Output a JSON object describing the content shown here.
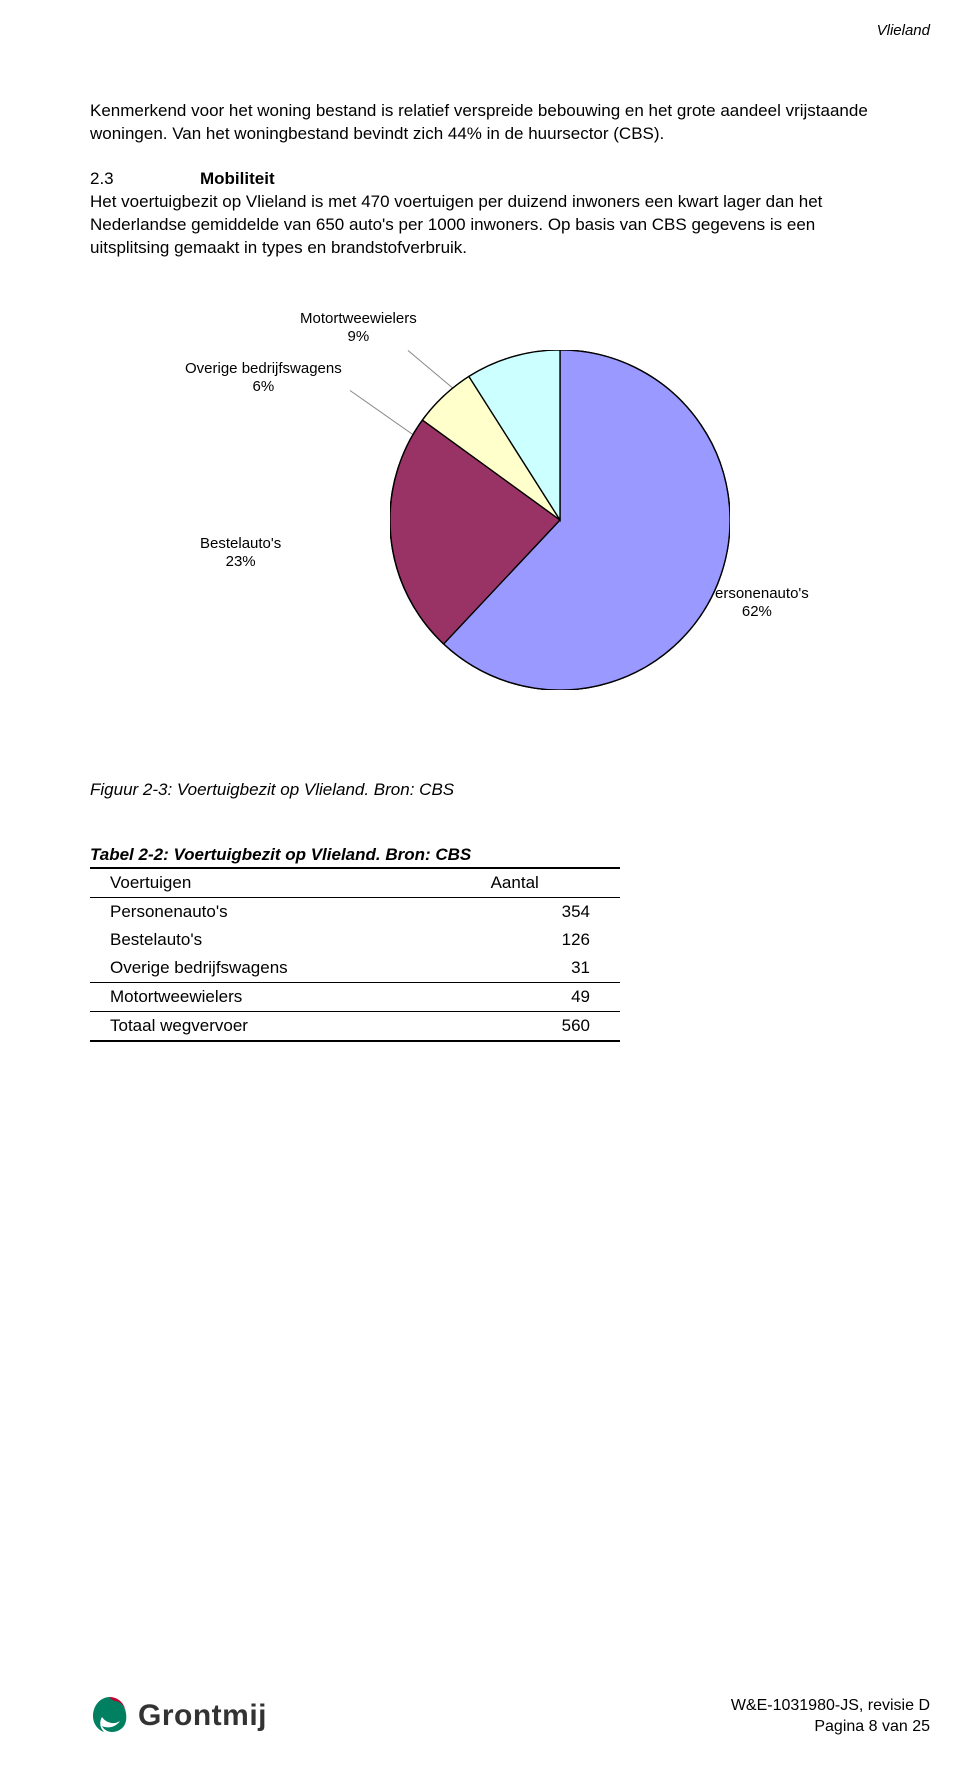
{
  "header": {
    "doc_title": "Vlieland"
  },
  "body": {
    "para1": "Kenmerkend voor het woning bestand is relatief verspreide bebouwing en het grote aandeel vrijstaande woningen. Van het woningbestand bevindt zich 44% in de huursector (CBS).",
    "section_num": "2.3",
    "section_title": "Mobiliteit",
    "para2": "Het voertuigbezit op Vlieland is met 470 voertuigen per duizend inwoners een kwart lager dan het Nederlandse gemiddelde van 650 auto's per 1000 inwoners. Op basis van CBS gegevens is een uitsplitsing gemaakt in types en brandstofverbruik."
  },
  "pie": {
    "type": "pie",
    "colors": {
      "personenauto": "#9999ff",
      "bestelauto": "#993366",
      "overige": "#ffffcc",
      "motor": "#ccffff",
      "stroke": "#000000"
    },
    "slices": [
      {
        "label_line1": "Personenauto's",
        "label_line2": "62%",
        "value": 62
      },
      {
        "label_line1": "Bestelauto's",
        "label_line2": "23%",
        "value": 23
      },
      {
        "label_line1": "Overige bedrijfswagens",
        "label_line2": "6%",
        "value": 6
      },
      {
        "label_line1": "Motortweewielers",
        "label_line2": "9%",
        "value": 9
      }
    ],
    "label_fontsize": 15
  },
  "figure_caption": "Figuur 2-3: Voertuigbezit op Vlieland. Bron: CBS",
  "table": {
    "caption": "Tabel 2-2: Voertuigbezit op Vlieland. Bron: CBS",
    "col1": "Voertuigen",
    "col2": "Aantal",
    "rows": [
      {
        "name": "Personenauto's",
        "value": "354"
      },
      {
        "name": "Bestelauto's",
        "value": "126"
      },
      {
        "name": "Overige bedrijfswagens",
        "value": "31"
      },
      {
        "name": "Motortweewielers",
        "value": "49"
      },
      {
        "name": "Totaal wegvervoer",
        "value": "560"
      }
    ]
  },
  "footer": {
    "logo_text": "Grontmij",
    "line1": "W&E-1031980-JS, revisie D",
    "line2": "Pagina 8 van 25"
  }
}
